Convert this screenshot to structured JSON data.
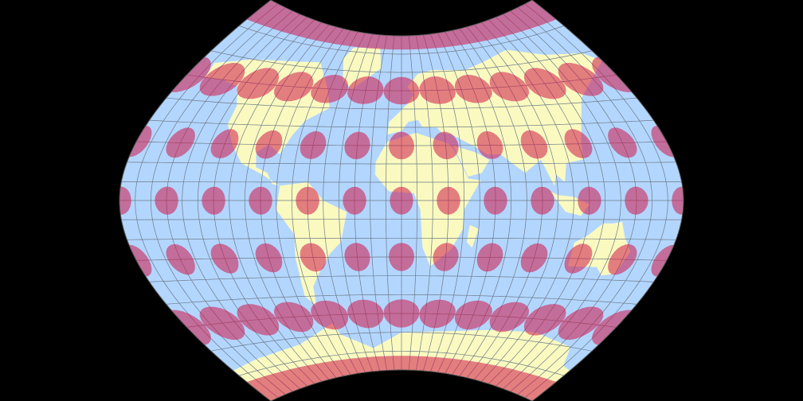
{
  "map": {
    "projection_style": "world map with Tissot indicatrices",
    "graticule_step_deg": 10,
    "indicatrix_step_deg": 30,
    "colors": {
      "background": "#000000",
      "ocean": "#b3d6ff",
      "land": "#fafac0",
      "graticule": "#6e7a86",
      "indicatrix": "#d01848",
      "outline": "#555555"
    }
  }
}
